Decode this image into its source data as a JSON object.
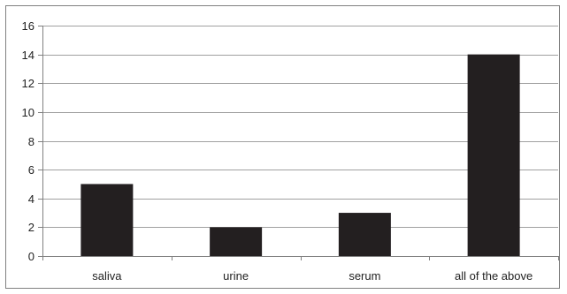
{
  "chart_data": {
    "type": "bar",
    "categories": [
      "saliva",
      "urine",
      "serum",
      "all of the above"
    ],
    "values": [
      5,
      2,
      3,
      14
    ],
    "title": "",
    "xlabel": "",
    "ylabel": "",
    "ylim": [
      0,
      16
    ],
    "yticks": [
      0,
      2,
      4,
      6,
      8,
      10,
      12,
      14,
      16
    ],
    "grid": true,
    "legend": "none",
    "bar_color": "#231f20",
    "grid_color": "#a0a0a0"
  }
}
